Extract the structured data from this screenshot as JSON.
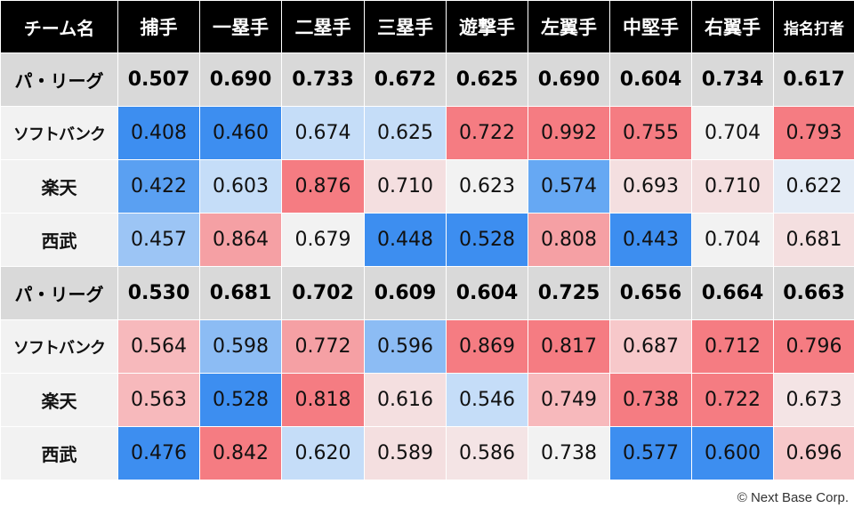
{
  "chart_data": {
    "type": "table",
    "columns": [
      "チーム名",
      "捕手",
      "一塁手",
      "二塁手",
      "三塁手",
      "遊撃手",
      "左翼手",
      "中堅手",
      "右翼手",
      "指名打者"
    ],
    "groups": [
      {
        "league": {
          "name": "パ・リーグ",
          "values": [
            "0.507",
            "0.690",
            "0.733",
            "0.672",
            "0.625",
            "0.690",
            "0.604",
            "0.734",
            "0.617"
          ]
        },
        "teams": [
          {
            "name": "ソフトバンク",
            "values": [
              "0.408",
              "0.460",
              "0.674",
              "0.625",
              "0.722",
              "0.992",
              "0.755",
              "0.704",
              "0.793"
            ]
          },
          {
            "name": "楽天",
            "values": [
              "0.422",
              "0.603",
              "0.876",
              "0.710",
              "0.623",
              "0.574",
              "0.693",
              "0.710",
              "0.622"
            ]
          },
          {
            "name": "西武",
            "values": [
              "0.457",
              "0.864",
              "0.679",
              "0.448",
              "0.528",
              "0.808",
              "0.443",
              "0.704",
              "0.681"
            ]
          }
        ]
      },
      {
        "league": {
          "name": "パ・リーグ",
          "values": [
            "0.530",
            "0.681",
            "0.702",
            "0.609",
            "0.604",
            "0.725",
            "0.656",
            "0.664",
            "0.663"
          ]
        },
        "teams": [
          {
            "name": "ソフトバンク",
            "values": [
              "0.564",
              "0.598",
              "0.772",
              "0.596",
              "0.869",
              "0.817",
              "0.687",
              "0.712",
              "0.796"
            ]
          },
          {
            "name": "楽天",
            "values": [
              "0.563",
              "0.528",
              "0.818",
              "0.616",
              "0.546",
              "0.749",
              "0.738",
              "0.722",
              "0.673"
            ]
          },
          {
            "name": "西武",
            "values": [
              "0.476",
              "0.842",
              "0.620",
              "0.589",
              "0.586",
              "0.738",
              "0.577",
              "0.600",
              "0.696"
            ]
          }
        ]
      }
    ],
    "cell_colors": [
      [
        "#3d8ef0",
        "#3d8ef0",
        "#c5ddf8",
        "#c5ddf8",
        "#f57c82",
        "#f57c82",
        "#f57c82",
        "#f2f2f2",
        "#f57c82"
      ],
      [
        "#5aa0f2",
        "#c5ddf8",
        "#f57c82",
        "#f4dfe0",
        "#f2f2f2",
        "#66a8f3",
        "#f4dfe0",
        "#f4dfe0",
        "#e4ecf6"
      ],
      [
        "#9cc5f5",
        "#f5a0a4",
        "#f2f2f2",
        "#3d8ef0",
        "#3d8ef0",
        "#f5a0a4",
        "#3d8ef0",
        "#f2f2f2",
        "#f4dfe0"
      ],
      [
        "#f7b9bc",
        "#8cbcf4",
        "#f5a0a4",
        "#8cbcf4",
        "#f57c82",
        "#f57c82",
        "#f7c8ca",
        "#f57c82",
        "#f57c82"
      ],
      [
        "#f7b9bc",
        "#3d8ef0",
        "#f57c82",
        "#f4dfe0",
        "#c5ddf8",
        "#f7b9bc",
        "#f57c82",
        "#f57c82",
        "#f4e4e5"
      ],
      [
        "#3d8ef0",
        "#f57c82",
        "#c5ddf8",
        "#f4dfe0",
        "#f4e4e5",
        "#f2f2f2",
        "#3d8ef0",
        "#3d8ef0",
        "#f7c8ca"
      ]
    ]
  },
  "credit": "© Next Base Corp."
}
